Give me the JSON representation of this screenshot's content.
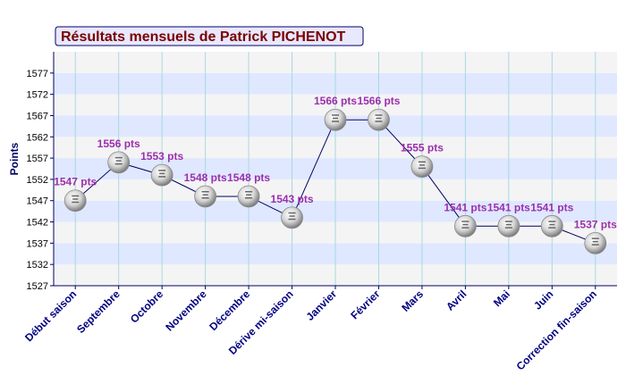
{
  "chart_data": {
    "type": "line",
    "title": "Résultats mensuels de Patrick PICHENOT",
    "ylabel": "Points",
    "xlabel": "",
    "ylim": [
      1527,
      1582
    ],
    "y_ticks": [
      1527,
      1532,
      1537,
      1542,
      1547,
      1552,
      1557,
      1562,
      1567,
      1572,
      1577
    ],
    "grid": true,
    "categories": [
      "Début saison",
      "Septembre",
      "Octobre",
      "Novembre",
      "Décembre",
      "Dérive mi-saison",
      "Janvier",
      "Février",
      "Mars",
      "Avril",
      "Mai",
      "Juin",
      "Correction fin-saison"
    ],
    "series": [
      {
        "values": [
          1547,
          1556,
          1553,
          1548,
          1548,
          1543,
          1566,
          1566,
          1555,
          1541,
          1541,
          1541,
          1537
        ],
        "labels": [
          "1547 pts",
          "1556 pts",
          "1553 pts",
          "1548 pts",
          "1548 pts",
          "1543 pts",
          "1566 pts",
          "1566 pts",
          "1555 pts",
          "1541 pts",
          "1541 pts",
          "1541 pts",
          "1537 pts"
        ]
      }
    ],
    "colors": {
      "band": "#dfe8ff",
      "band_alt": "#f4f4f4",
      "line": "#000066",
      "label": "#9b2fae",
      "axis_label": "#000080",
      "title": "#7a0000",
      "title_bg": "#e8e8ff"
    }
  }
}
